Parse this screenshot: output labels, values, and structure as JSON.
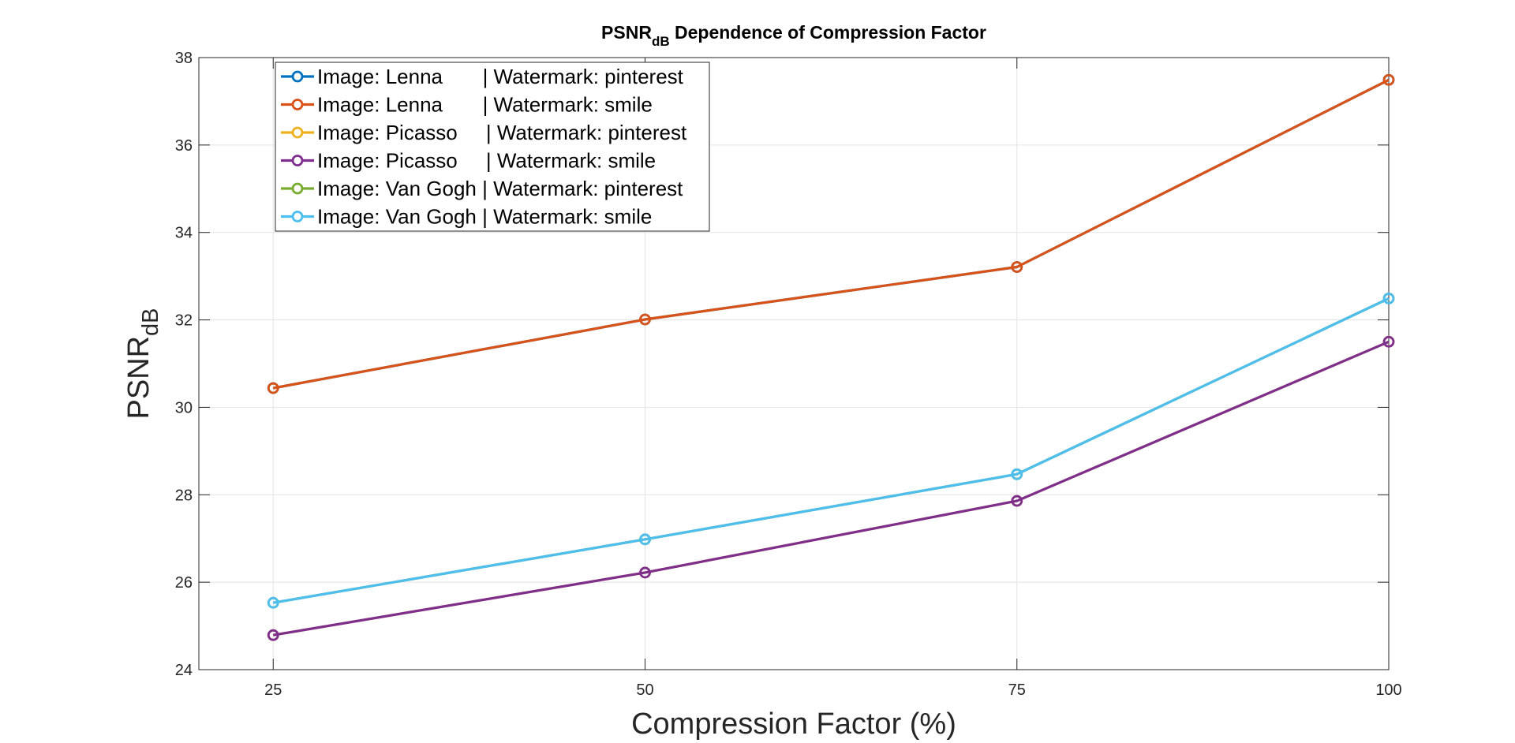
{
  "chart_data": {
    "type": "line",
    "title_main": "PSNR",
    "title_sub": "dB",
    "title_rest": " Dependence of Compression Factor",
    "xlabel": "Compression Factor (%)",
    "ylabel_main": "PSNR",
    "ylabel_sub": "dB",
    "x": [
      25,
      50,
      75,
      100
    ],
    "x_tick_labels": [
      "25",
      "50",
      "75",
      "100"
    ],
    "xlim": [
      20,
      100
    ],
    "ylim": [
      24,
      38
    ],
    "y_ticks": [
      24,
      26,
      28,
      30,
      32,
      34,
      36,
      38
    ],
    "y_tick_labels": [
      "24",
      "26",
      "28",
      "30",
      "32",
      "34",
      "36",
      "38"
    ],
    "grid": true,
    "legend_position": "top-left",
    "series": [
      {
        "name": "Image: Lenna       | Watermark: pinterest",
        "color": "#0072BD",
        "values": [
          30.44,
          32.01,
          33.21,
          37.49
        ]
      },
      {
        "name": "Image: Lenna       | Watermark: smile",
        "color": "#D95319",
        "values": [
          30.44,
          32.01,
          33.21,
          37.49
        ]
      },
      {
        "name": "Image: Picasso     | Watermark: pinterest",
        "color": "#EDB120",
        "values": [
          24.79,
          26.22,
          27.86,
          31.5
        ]
      },
      {
        "name": "Image: Picasso     | Watermark: smile",
        "color": "#7E2F8E",
        "values": [
          24.79,
          26.22,
          27.86,
          31.5
        ]
      },
      {
        "name": "Image: Van Gogh | Watermark: pinterest",
        "color": "#77AC30",
        "values": [
          25.53,
          26.98,
          28.47,
          32.49
        ]
      },
      {
        "name": "Image: Van Gogh | Watermark: smile",
        "color": "#4DBEEE",
        "values": [
          25.53,
          26.98,
          28.47,
          32.49
        ]
      }
    ]
  }
}
